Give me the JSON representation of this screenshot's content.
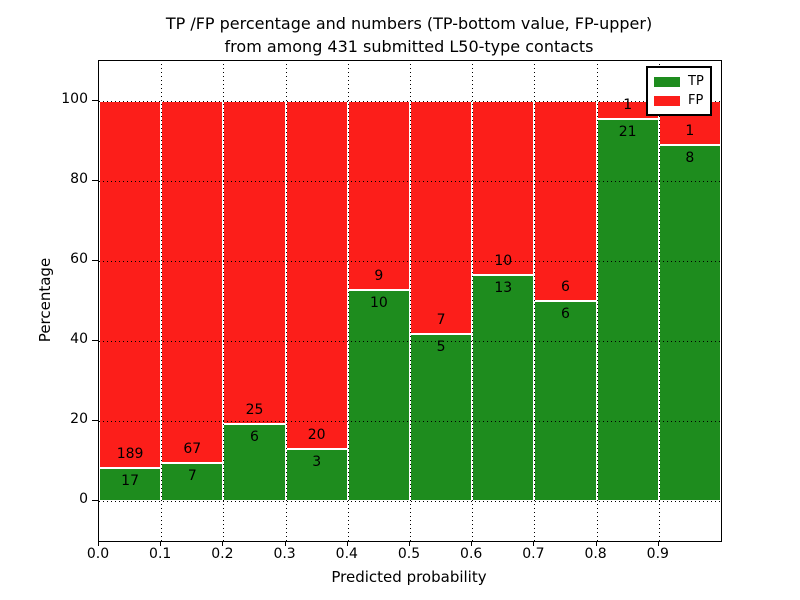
{
  "title": {
    "line1": "TP /FP percentage and numbers (TP-bottom value, FP-upper)",
    "line2": "from among 431 submitted L50-type contacts"
  },
  "chart_data": {
    "type": "bar",
    "stacked": true,
    "normalized_to_percent": true,
    "title": "TP /FP percentage and numbers (TP-bottom value, FP-upper) from among 431 submitted L50-type contacts",
    "xlabel": "Predicted probability",
    "ylabel": "Percentage",
    "bin_edges": [
      0.0,
      0.1,
      0.2,
      0.3,
      0.4,
      0.5,
      0.6,
      0.7,
      0.8,
      0.9,
      1.0
    ],
    "categories": [
      "0.0-0.1",
      "0.1-0.2",
      "0.2-0.3",
      "0.3-0.4",
      "0.4-0.5",
      "0.5-0.6",
      "0.6-0.7",
      "0.7-0.8",
      "0.8-0.9",
      "0.9-1.0"
    ],
    "series": [
      {
        "name": "TP",
        "color": "#1e8c1e",
        "counts": [
          17,
          7,
          6,
          3,
          10,
          5,
          13,
          6,
          21,
          8
        ]
      },
      {
        "name": "FP",
        "color": "#fc1e1a",
        "counts": [
          189,
          67,
          25,
          20,
          9,
          7,
          10,
          6,
          1,
          1
        ]
      }
    ],
    "tp_percent": [
      8.25,
      9.46,
      19.35,
      13.04,
      52.63,
      41.67,
      56.52,
      50.0,
      95.45,
      88.89
    ],
    "total_contacts": 431,
    "xlim": [
      0.0,
      1.0
    ],
    "ylim": [
      -10,
      110
    ],
    "xticks": [
      "0.0",
      "0.1",
      "0.2",
      "0.3",
      "0.4",
      "0.5",
      "0.6",
      "0.7",
      "0.8",
      "0.9"
    ],
    "yticks": [
      0,
      20,
      40,
      60,
      80,
      100
    ],
    "grid": "dotted",
    "legend_position": "upper right",
    "bar_edge_color": "#ffffff"
  }
}
